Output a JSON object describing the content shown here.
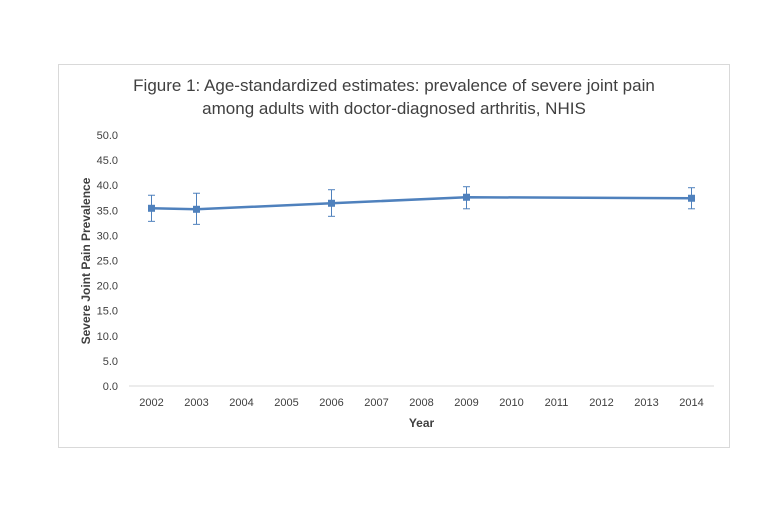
{
  "chart_data": {
    "type": "line",
    "title_lines": [
      "Figure 1: Age-standardized estimates: prevalence of severe joint pain",
      "among adults with doctor-diagnosed arthritis, NHIS"
    ],
    "xlabel": "Year",
    "ylabel": "Severe Joint Pain Prevalence",
    "categories": [
      "2002",
      "2003",
      "2004",
      "2005",
      "2006",
      "2007",
      "2008",
      "2009",
      "2010",
      "2011",
      "2012",
      "2013",
      "2014"
    ],
    "y_ticks": [
      "0.0",
      "5.0",
      "10.0",
      "15.0",
      "20.0",
      "25.0",
      "30.0",
      "35.0",
      "40.0",
      "45.0",
      "50.0"
    ],
    "ylim": [
      0,
      50
    ],
    "grid": false,
    "legend": "none",
    "series": [
      {
        "color": "#4f81bd",
        "points": [
          {
            "x": "2002",
            "y": 35.4,
            "err_low": 32.8,
            "err_high": 38.0
          },
          {
            "x": "2003",
            "y": 35.2,
            "err_low": 32.2,
            "err_high": 38.4
          },
          {
            "x": "2006",
            "y": 36.4,
            "err_low": 33.8,
            "err_high": 39.1
          },
          {
            "x": "2009",
            "y": 37.6,
            "err_low": 35.3,
            "err_high": 39.7
          },
          {
            "x": "2014",
            "y": 37.4,
            "err_low": 35.3,
            "err_high": 39.5
          }
        ]
      }
    ]
  }
}
